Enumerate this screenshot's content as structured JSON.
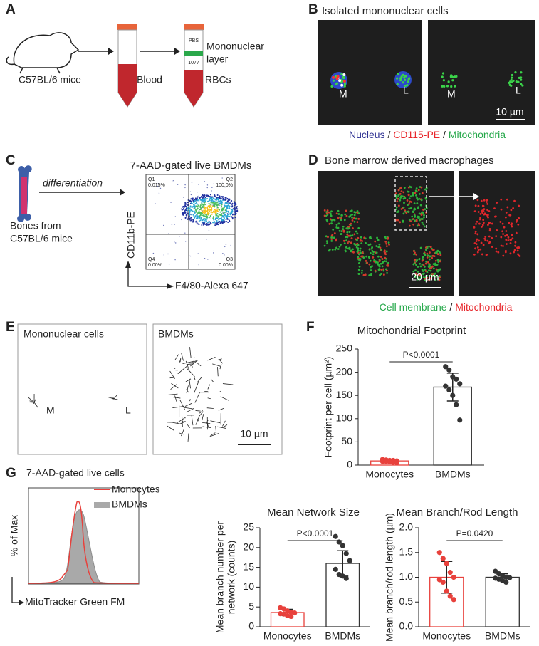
{
  "panels": {
    "A": {
      "letter": "A",
      "mouse": "C57BL/6 mice",
      "blood": "Blood",
      "pbs": "PBS",
      "ficoll": "1077",
      "layer": [
        "Mononuclear",
        "layer"
      ],
      "rbc": "RBCs"
    },
    "B": {
      "letter": "B",
      "title": "Isolated mononuclear cells",
      "m1": "M",
      "l1": "L",
      "m2": "M",
      "l2": "L",
      "scale": "10 µm",
      "caption": [
        "Nucleus",
        " / ",
        "CD115-PE",
        " / ",
        "Mitochondria"
      ]
    },
    "C": {
      "letter": "C",
      "arrow": "differentiation",
      "source": [
        "Bones from",
        "C57BL/6 mice"
      ],
      "title": "7-AAD-gated live BMDMs",
      "quadrants": [
        [
          "Q1",
          "0.015%"
        ],
        [
          "Q2",
          "100.0%"
        ],
        [
          "Q4",
          "0.00%"
        ],
        [
          "Q3",
          "0.00%"
        ]
      ],
      "ylabel": "CD11b-PE",
      "xlabel": "F4/80-Alexa 647"
    },
    "D": {
      "letter": "D",
      "title": "Bone marrow derived macrophages",
      "scale": "20 µm",
      "caption": [
        "Cell membrane",
        " / ",
        "Mitochondria"
      ]
    },
    "E": {
      "letter": "E",
      "left": "Mononuclear cells",
      "right": "BMDMs",
      "m": "M",
      "l": "L",
      "scale": "10 µm"
    },
    "F": {
      "letter": "F"
    },
    "G": {
      "letter": "G",
      "title": "7-AAD-gated live cells",
      "legend": [
        "Monocytes",
        "BMDMs"
      ],
      "ylabel": "% of Max",
      "xlabel": "MitoTracker Green FM"
    }
  },
  "chart_data": [
    {
      "type": "bar",
      "title": "Mitochondrial Footprint",
      "ylabel": [
        "Footprint per cell (µm²)"
      ],
      "categories": [
        "Monocytes",
        "BMDMs"
      ],
      "values": [
        9,
        168
      ],
      "errors": [
        2,
        30
      ],
      "points": [
        [
          12,
          11,
          10,
          10,
          9,
          8,
          8,
          7,
          6,
          5
        ],
        [
          212,
          205,
          190,
          185,
          175,
          170,
          162,
          150,
          130,
          97
        ]
      ],
      "colors": [
        "#e8413c",
        "#333333"
      ],
      "ylim": [
        0,
        250
      ],
      "yticks": [
        0,
        50,
        100,
        150,
        200,
        250
      ],
      "annotation": "P<0.0001"
    },
    {
      "type": "bar",
      "title": "Mean Network Size",
      "ylabel": [
        "Mean branch number per",
        "network (counts)"
      ],
      "categories": [
        "Monocytes",
        "BMDMs"
      ],
      "values": [
        3.6,
        16
      ],
      "errors": [
        0.8,
        3.2
      ],
      "points": [
        [
          4.8,
          4.5,
          4,
          3.7,
          3.5,
          3.3,
          3.2,
          2.8,
          2.6
        ],
        [
          22.8,
          21.4,
          20.5,
          18.5,
          16.7,
          14.5,
          13.2,
          12.8,
          12.2
        ]
      ],
      "colors": [
        "#e8413c",
        "#333333"
      ],
      "ylim": [
        0,
        25
      ],
      "yticks": [
        0,
        5,
        10,
        15,
        20,
        25
      ],
      "annotation": "P<0.0001"
    },
    {
      "type": "bar",
      "title": "Mean Branch/Rod Length",
      "ylabel": [
        "Mean branch/rod length (µm)"
      ],
      "categories": [
        "Monocytes",
        "BMDMs"
      ],
      "values": [
        1.0,
        1.0
      ],
      "errors": [
        0.32,
        0.07
      ],
      "points": [
        [
          1.5,
          1.38,
          1.28,
          1.1,
          1.0,
          0.95,
          0.9,
          0.72,
          0.62,
          0.55
        ],
        [
          1.12,
          1.07,
          1.03,
          1.0,
          0.99,
          0.98,
          0.96,
          0.93,
          0.9
        ]
      ],
      "colors": [
        "#e8413c",
        "#333333"
      ],
      "ylim": [
        0,
        2
      ],
      "yticks": [
        {
          "value": 0,
          "label": "0.0"
        },
        0.5,
        {
          "value": 1,
          "label": "1.0"
        },
        1.5,
        {
          "value": 2,
          "label": "2.0"
        }
      ],
      "annotation": "P=0.0420"
    }
  ]
}
